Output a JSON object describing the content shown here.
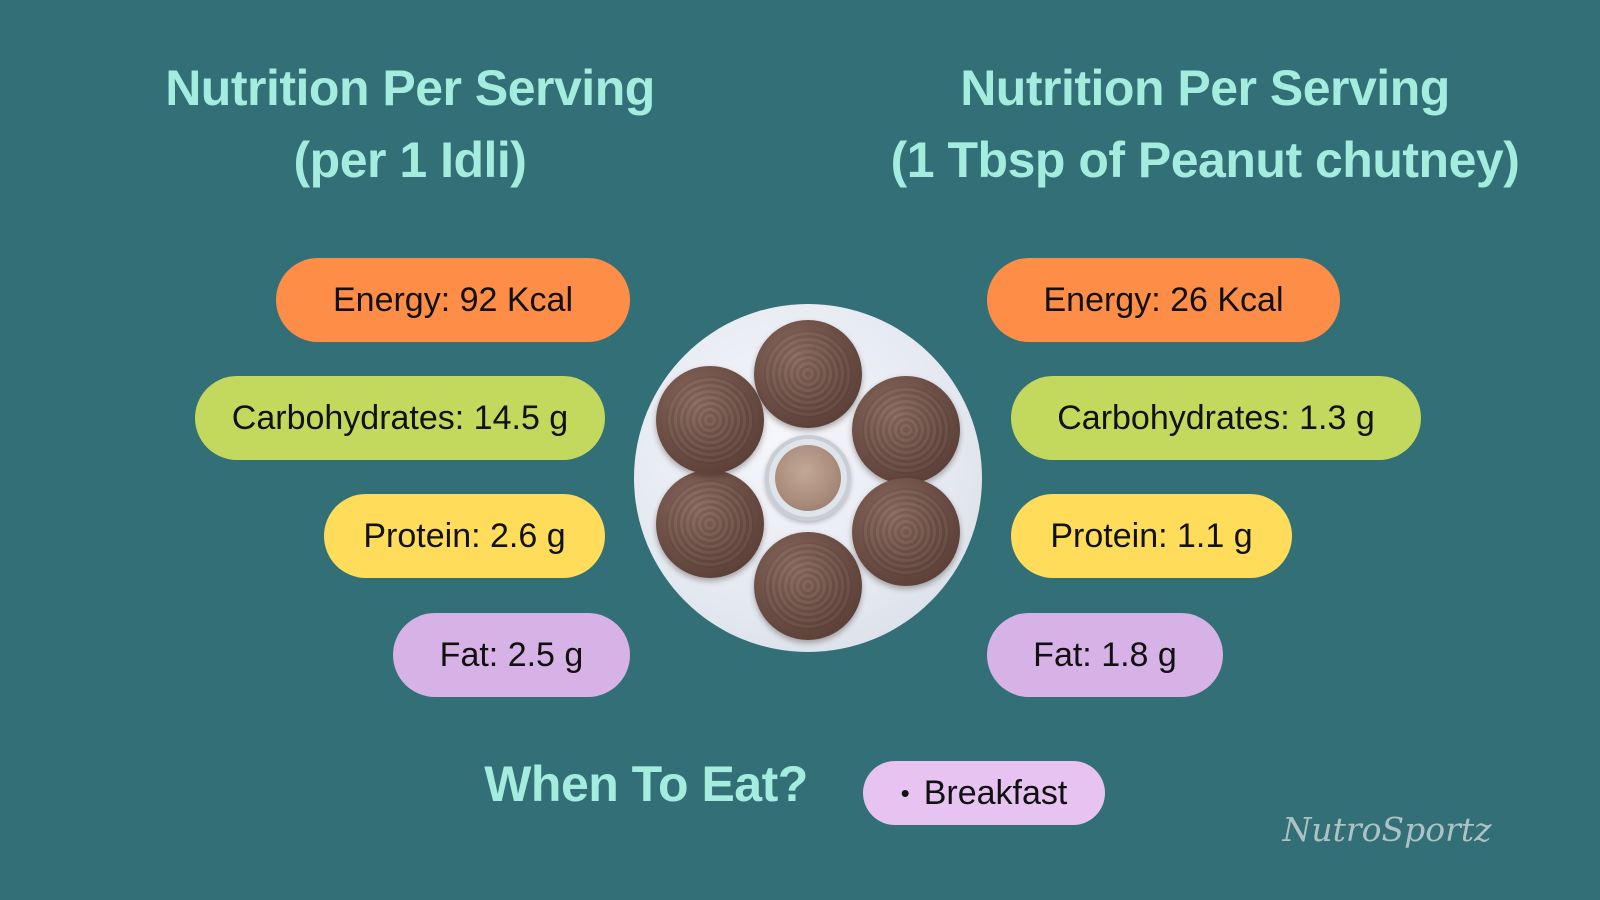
{
  "left_panel": {
    "title_line1": "Nutrition Per Serving",
    "title_line2": "(per 1 Idli)",
    "energy": "Energy: 92 Kcal",
    "carbohydrates": "Carbohydrates: 14.5 g",
    "protein": "Protein: 2.6 g",
    "fat": "Fat: 2.5 g"
  },
  "right_panel": {
    "title_line1": "Nutrition Per Serving",
    "title_line2": "(1 Tbsp of Peanut chutney)",
    "energy": "Energy: 26 Kcal",
    "carbohydrates": "Carbohydrates: 1.3 g",
    "protein": "Protein: 1.1 g",
    "fat": "Fat: 1.8 g"
  },
  "when_to_eat": {
    "label": "When To Eat?",
    "bullet": "•",
    "item": "Breakfast"
  },
  "brand": {
    "logo_text": "NutroSportz"
  },
  "colors": {
    "background": "#336f77",
    "heading": "#a4ecdd",
    "energy_pill": "#fe8d47",
    "carbohydrates_pill": "#c3d95d",
    "protein_pill": "#ffdd5a",
    "fat_pill": "#d7b2e6",
    "when_pill": "#e6c3f1"
  }
}
